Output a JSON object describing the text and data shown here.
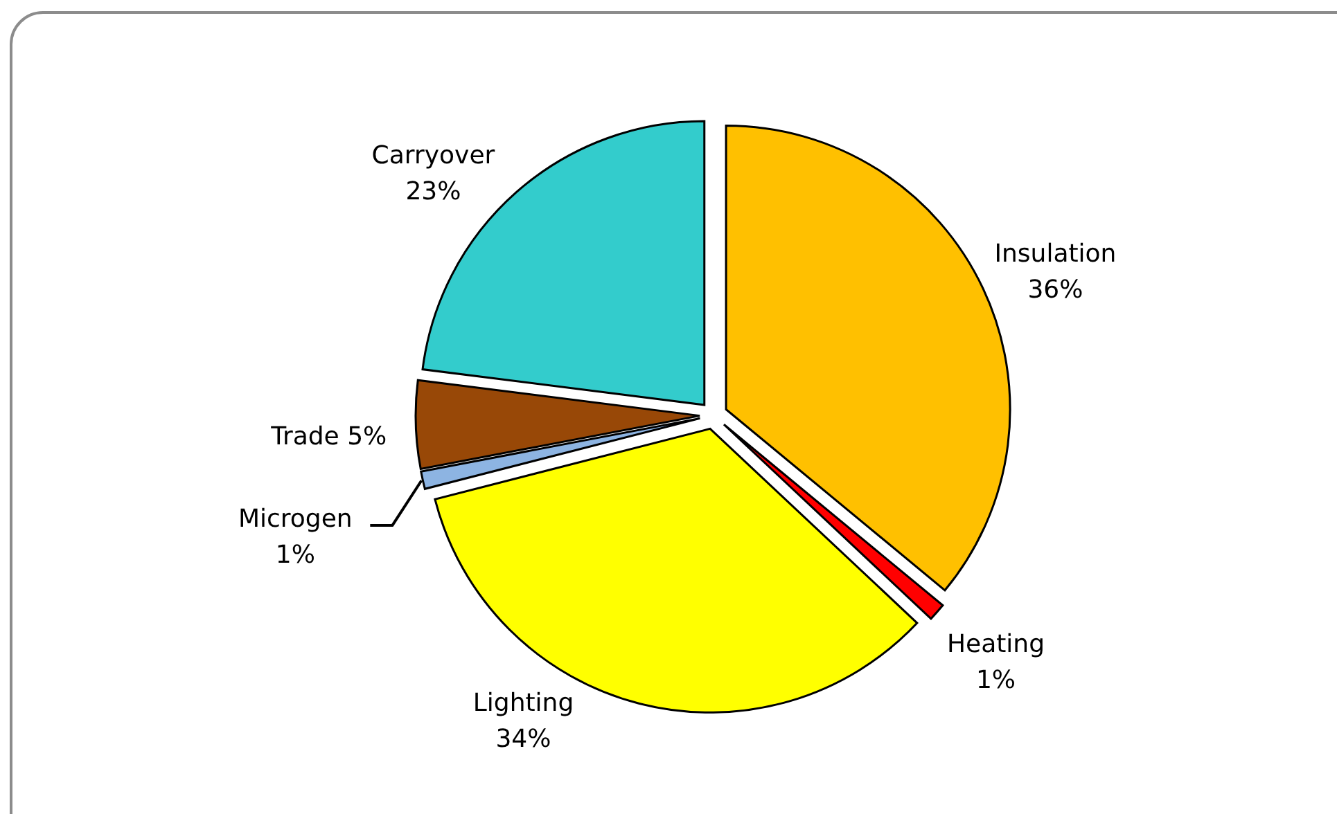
{
  "chart_data": {
    "type": "pie",
    "categories": [
      "Insulation",
      "Heating",
      "Lighting",
      "Microgen",
      "Trade",
      "Carryover"
    ],
    "values": [
      36,
      1,
      34,
      1,
      5,
      23
    ],
    "colors": [
      "#ffc000",
      "#ff0000",
      "#ffff00",
      "#8db4e2",
      "#984807",
      "#33cccc"
    ],
    "value_labels": [
      "36%",
      "1%",
      "34%",
      "1%",
      "5%",
      "23%"
    ]
  }
}
